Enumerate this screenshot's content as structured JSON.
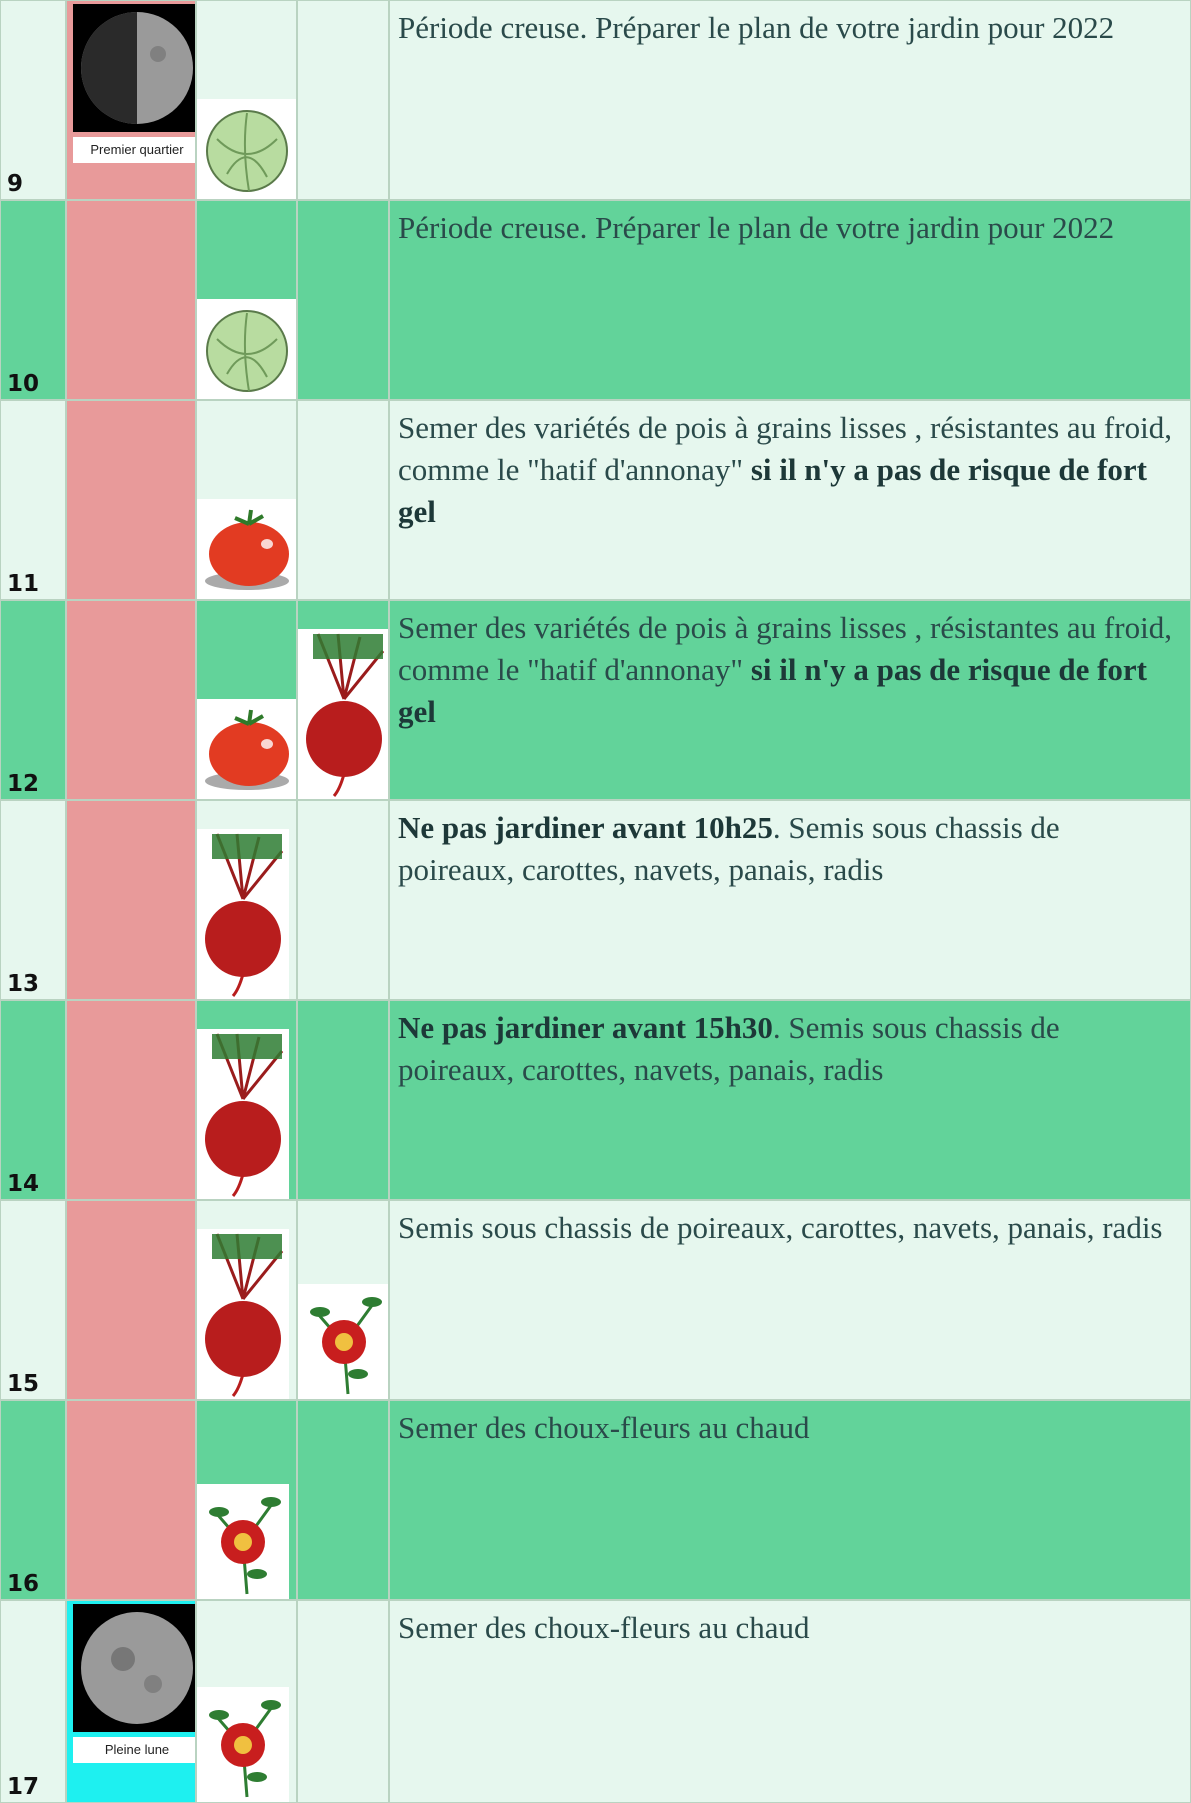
{
  "rows": [
    {
      "day": "9",
      "moon": "Premier quartier",
      "text": [
        {
          "text": "Période creuse. Préparer le plan de votre jardin pour 2022"
        }
      ]
    },
    {
      "day": "10",
      "text": [
        {
          "text": "Période creuse. Préparer le plan de votre jardin pour 2022"
        }
      ]
    },
    {
      "day": "11",
      "text": [
        {
          "text": "Semer des variétés de pois à grains lisses , résistantes au froid, comme le \"hatif d'annonay\" "
        },
        {
          "text": "si il n'y a pas de risque de fort gel",
          "bold": true
        }
      ]
    },
    {
      "day": "12",
      "text": [
        {
          "text": "Semer des variétés de pois à grains lisses , résistantes au froid, comme le \"hatif d'annonay\" "
        },
        {
          "text": "si il n'y a pas de risque de fort gel",
          "bold": true
        }
      ]
    },
    {
      "day": "13",
      "text": [
        {
          "text": "Ne pas jardiner avant 10h25",
          "bold": true
        },
        {
          "text": ". Semis sous chassis de poireaux, carottes, navets, panais, radis"
        }
      ]
    },
    {
      "day": "14",
      "text": [
        {
          "text": "Ne pas jardiner avant 15h30",
          "bold": true
        },
        {
          "text": ". Semis sous chassis de poireaux, carottes, navets, panais, radis"
        }
      ]
    },
    {
      "day": "15",
      "text": [
        {
          "text": "Semis sous chassis de poireaux, carottes, navets, panais, radis"
        }
      ]
    },
    {
      "day": "16",
      "text": [
        {
          "text": "Semer des choux-fleurs au chaud"
        }
      ]
    },
    {
      "day": "17",
      "moon": "Pleine lune",
      "text": [
        {
          "text": "Semer des choux-fleurs au chaud"
        }
      ]
    }
  ]
}
